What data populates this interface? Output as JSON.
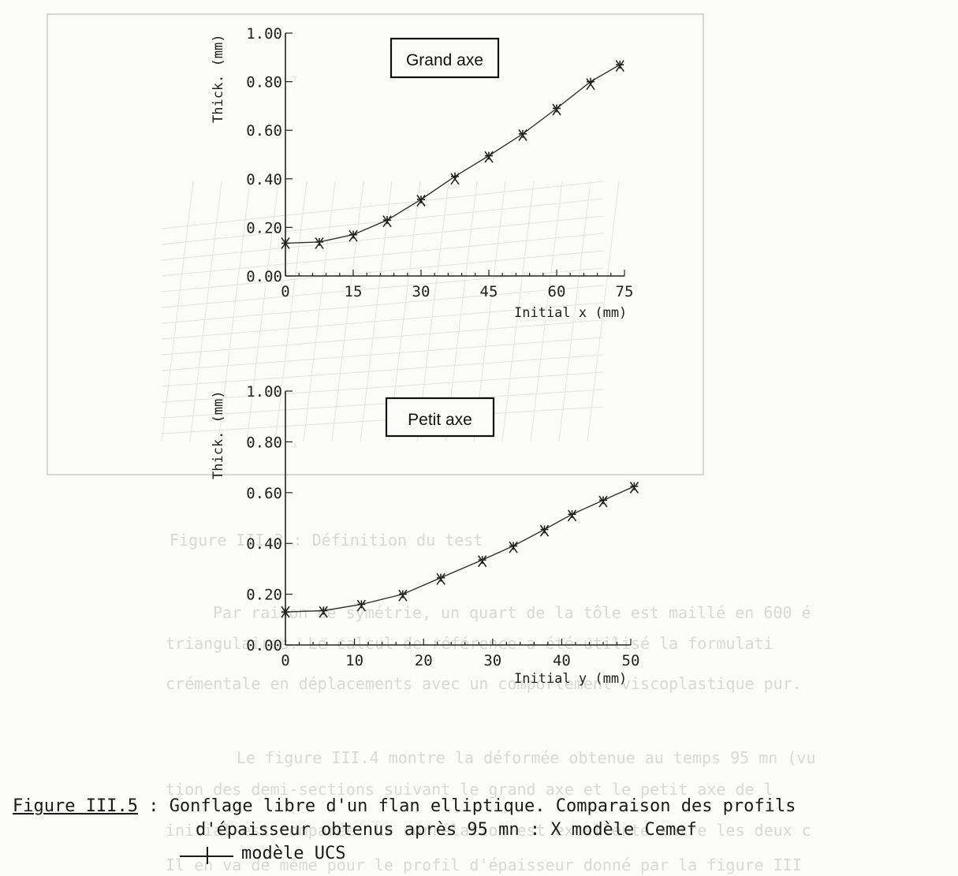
{
  "chart_data": [
    {
      "type": "line",
      "title": "Grand axe",
      "xlabel": "Initial x (mm)",
      "ylabel": "Thick. (mm)",
      "xlim": [
        0,
        75
      ],
      "ylim": [
        0,
        1.0
      ],
      "xticks": [
        0,
        15,
        30,
        45,
        60,
        75
      ],
      "yticks": [
        0.0,
        0.2,
        0.4,
        0.6,
        0.8,
        1.0
      ],
      "xtick_labels": [
        "0",
        "15",
        "30",
        "45",
        "60",
        "75"
      ],
      "ytick_labels": [
        "0.00",
        "0.20",
        "0.40",
        "0.60",
        "0.80",
        "1.00"
      ],
      "series": [
        {
          "marker": "x",
          "x": [
            0,
            7.5,
            15,
            22.5,
            30,
            37.5,
            45,
            52.5,
            60,
            67.5,
            74
          ],
          "y": [
            0.135,
            0.135,
            0.165,
            0.225,
            0.31,
            0.4,
            0.49,
            0.58,
            0.685,
            0.79,
            0.865
          ]
        },
        {
          "marker": "+",
          "x": [
            0,
            7.5,
            15,
            22.5,
            30,
            37.5,
            45,
            52.5,
            60,
            67.5,
            74
          ],
          "y": [
            0.135,
            0.14,
            0.17,
            0.23,
            0.315,
            0.41,
            0.495,
            0.585,
            0.69,
            0.8,
            0.87
          ]
        }
      ]
    },
    {
      "type": "line",
      "title": "Petit axe",
      "xlabel": "Initial y (mm)",
      "ylabel": "Thick. (mm)",
      "xlim": [
        0,
        50
      ],
      "ylim": [
        0,
        1.0
      ],
      "xticks": [
        0,
        10,
        20,
        30,
        40,
        50
      ],
      "yticks": [
        0.0,
        0.2,
        0.4,
        0.6,
        0.8,
        1.0
      ],
      "xtick_labels": [
        "0",
        "10",
        "20",
        "30",
        "40",
        "50"
      ],
      "ytick_labels": [
        "0.00",
        "0.20",
        "0.40",
        "0.60",
        "0.80",
        "1.00"
      ],
      "series": [
        {
          "marker": "x",
          "x": [
            0,
            5.5,
            11,
            17,
            22.5,
            28.5,
            33,
            37.5,
            41.5,
            46,
            50.5
          ],
          "y": [
            0.13,
            0.13,
            0.155,
            0.195,
            0.26,
            0.33,
            0.385,
            0.45,
            0.51,
            0.565,
            0.62
          ]
        },
        {
          "marker": "+",
          "x": [
            0,
            5.5,
            11,
            17,
            22.5,
            28.5,
            33,
            37.5,
            41.5,
            46,
            50.5
          ],
          "y": [
            0.13,
            0.135,
            0.16,
            0.2,
            0.265,
            0.335,
            0.39,
            0.455,
            0.515,
            0.57,
            0.625
          ]
        }
      ]
    }
  ],
  "caption": {
    "label": "Figure III.5",
    "line1": " : Gonflage libre d'un flan elliptique. Comparaison des profils",
    "line2": "d'épaisseur obtenus après 95 mn : X modèle Cemef",
    "line3": "modèle UCS"
  },
  "bleed_through": {
    "heading": "Figure III.3 : Définition du test",
    "lines": [
      "Par raison de symétrie, un quart de la tôle est maillé en 600 é",
      "triangulaires. Le calcul de référence a été utilisé la formulati",
      "crémentale en déplacements avec un comportement viscoplastique pur.",
      "Le figure III.4 montre la déformée obtenue au temps 95 mn (vu",
      "tion des demi-sections suivant le grand axe et le petit axe de l",
      "initial est comparée. La corrélation est excellente entre les deux c",
      "Il en va de même pour le profil d'épaisseur donné par la figure III"
    ]
  }
}
